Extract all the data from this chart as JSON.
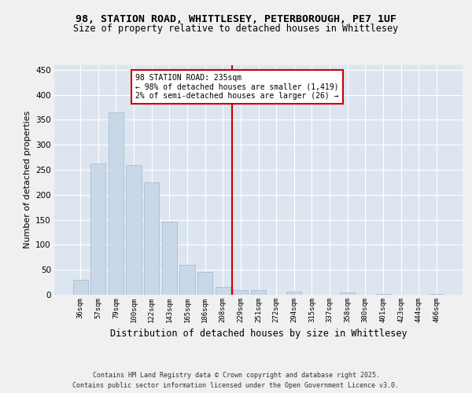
{
  "title_line1": "98, STATION ROAD, WHITTLESEY, PETERBOROUGH, PE7 1UF",
  "title_line2": "Size of property relative to detached houses in Whittlesey",
  "xlabel": "Distribution of detached houses by size in Whittlesey",
  "ylabel": "Number of detached properties",
  "bar_color": "#c8d8e8",
  "bar_edge_color": "#a0b8cc",
  "background_color": "#dde6f0",
  "grid_color": "#ffffff",
  "categories": [
    "36sqm",
    "57sqm",
    "79sqm",
    "100sqm",
    "122sqm",
    "143sqm",
    "165sqm",
    "186sqm",
    "208sqm",
    "229sqm",
    "251sqm",
    "272sqm",
    "294sqm",
    "315sqm",
    "337sqm",
    "358sqm",
    "380sqm",
    "401sqm",
    "423sqm",
    "444sqm",
    "466sqm"
  ],
  "values": [
    30,
    262,
    365,
    260,
    225,
    147,
    60,
    45,
    16,
    10,
    10,
    0,
    6,
    0,
    0,
    5,
    0,
    1,
    0,
    0,
    1
  ],
  "ylim": [
    0,
    460
  ],
  "yticks": [
    0,
    50,
    100,
    150,
    200,
    250,
    300,
    350,
    400,
    450
  ],
  "vline_x": 8.5,
  "vline_color": "#cc0000",
  "annotation_text": "98 STATION ROAD: 235sqm\n← 98% of detached houses are smaller (1,419)\n2% of semi-detached houses are larger (26) →",
  "annotation_box_color": "#cc0000",
  "fig_bg_color": "#f0f0f0",
  "footer_line1": "Contains HM Land Registry data © Crown copyright and database right 2025.",
  "footer_line2": "Contains public sector information licensed under the Open Government Licence v3.0."
}
